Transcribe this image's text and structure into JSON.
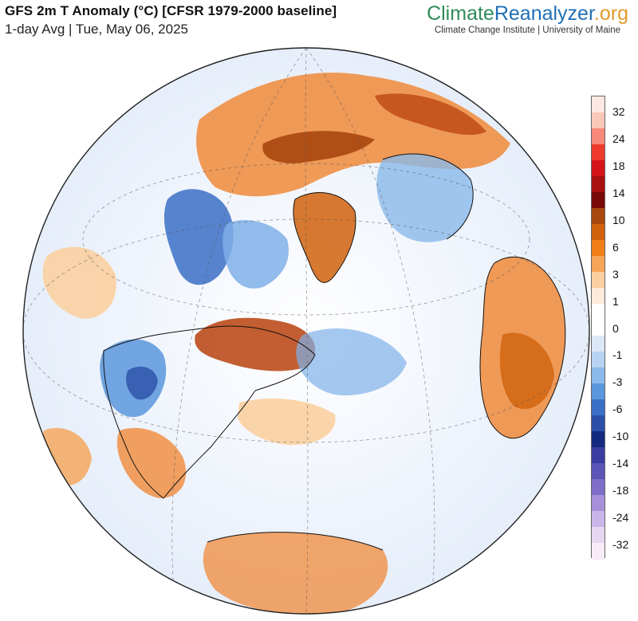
{
  "header": {
    "title": "GFS 2m T Anomaly (°C) [CFSR 1979-2000 baseline]",
    "subtitle": "1-day Avg | Tue, May 06, 2025"
  },
  "brand": {
    "logo_part1": "Climate",
    "logo_part2": "Reanalyzer",
    "logo_part3": ".org",
    "tagline": "Climate Change Institute | University of Maine"
  },
  "legend": {
    "labels": [
      "32",
      "24",
      "18",
      "14",
      "10",
      "6",
      "3",
      "1",
      "0",
      "-1",
      "-3",
      "-6",
      "-10",
      "-14",
      "-18",
      "-24",
      "-32"
    ],
    "colors": [
      "#fde8e4",
      "#fbc7b8",
      "#f7897a",
      "#ee3b2d",
      "#d4141a",
      "#a81010",
      "#7a0a0a",
      "#a8470e",
      "#d0610d",
      "#f07f18",
      "#f6a455",
      "#fbcfa0",
      "#fdeada",
      "#ffffff",
      "#ffffff",
      "#dbe8f7",
      "#b7d3f1",
      "#8ab9ea",
      "#5b97dc",
      "#3b6fc6",
      "#2b4fa8",
      "#142a80",
      "#3a3ea2",
      "#5b56b8",
      "#7e6ec8",
      "#a78fd9",
      "#cab5e8",
      "#e6d6f2",
      "#f7ecf8"
    ]
  },
  "colors": {
    "ocean_base": "#eef3fb",
    "warm": "#f08a3a",
    "warm_strong": "#b8420e",
    "cold": "#7fb0e8",
    "cold_strong": "#2b4fa8",
    "coastline": "#111111"
  }
}
